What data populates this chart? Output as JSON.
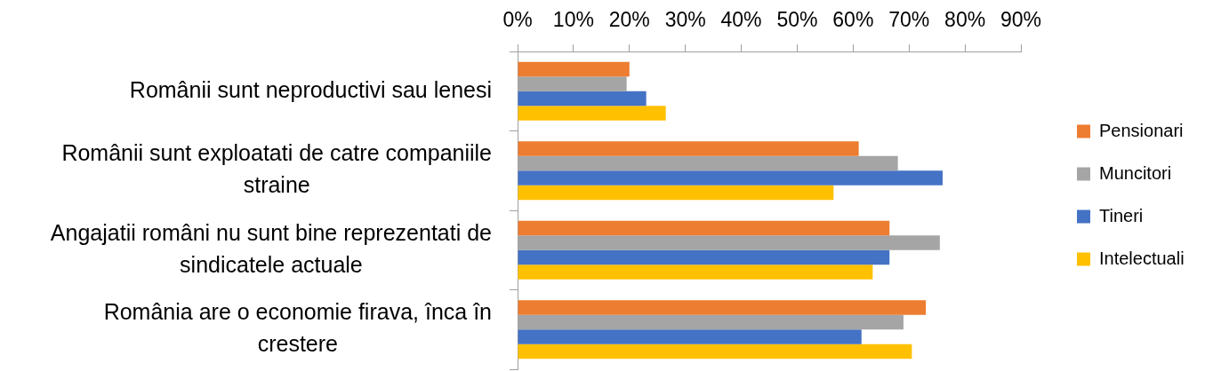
{
  "chart_data": {
    "type": "bar",
    "orientation": "horizontal",
    "categories": [
      "Românii sunt neproductivi sau lenesi",
      "Românii sunt exploatati de catre companiile straine",
      "Angajatii români nu sunt bine reprezentati de sindicatele actuale",
      "România are o economie firava, înca în crestere"
    ],
    "series": [
      {
        "name": "Pensionari",
        "color": "#ed7d31",
        "values": [
          20,
          61,
          66.5,
          73
        ]
      },
      {
        "name": "Muncitori",
        "color": "#a5a5a5",
        "values": [
          19.5,
          68,
          75.5,
          69
        ]
      },
      {
        "name": "Tineri",
        "color": "#4472c4",
        "values": [
          23,
          76,
          66.5,
          61.5
        ]
      },
      {
        "name": "Intelectuali",
        "color": "#ffc000",
        "values": [
          26.5,
          56.5,
          63.5,
          70.5
        ]
      }
    ],
    "xlim": [
      0,
      90
    ],
    "xticks": [
      {
        "value": 0,
        "label": "0%"
      },
      {
        "value": 10,
        "label": "10%"
      },
      {
        "value": 20,
        "label": "20%"
      },
      {
        "value": 30,
        "label": "30%"
      },
      {
        "value": 40,
        "label": "40%"
      },
      {
        "value": 50,
        "label": "50%"
      },
      {
        "value": 60,
        "label": "60%"
      },
      {
        "value": 70,
        "label": "70%"
      },
      {
        "value": 80,
        "label": "80%"
      },
      {
        "value": 90,
        "label": "90%"
      }
    ],
    "grid": false,
    "legend": "right"
  }
}
